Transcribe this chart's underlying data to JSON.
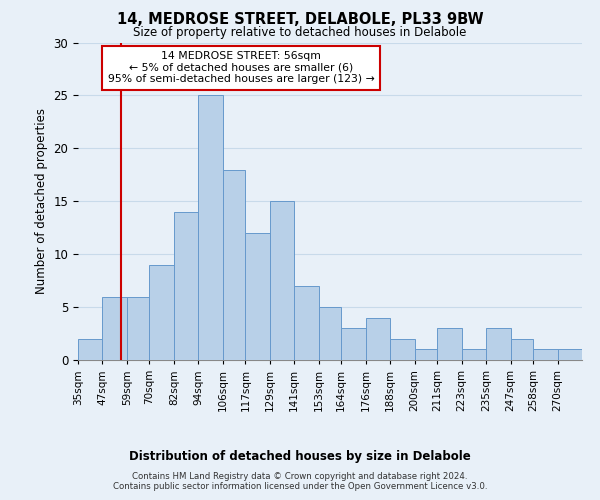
{
  "title": "14, MEDROSE STREET, DELABOLE, PL33 9BW",
  "subtitle": "Size of property relative to detached houses in Delabole",
  "xlabel": "Distribution of detached houses by size in Delabole",
  "ylabel": "Number of detached properties",
  "bin_labels": [
    "35sqm",
    "47sqm",
    "59sqm",
    "70sqm",
    "82sqm",
    "94sqm",
    "106sqm",
    "117sqm",
    "129sqm",
    "141sqm",
    "153sqm",
    "164sqm",
    "176sqm",
    "188sqm",
    "200sqm",
    "211sqm",
    "223sqm",
    "235sqm",
    "247sqm",
    "258sqm",
    "270sqm"
  ],
  "bin_edges": [
    35,
    47,
    59,
    70,
    82,
    94,
    106,
    117,
    129,
    141,
    153,
    164,
    176,
    188,
    200,
    211,
    223,
    235,
    247,
    258,
    270
  ],
  "bar_heights": [
    2,
    6,
    6,
    9,
    14,
    25,
    18,
    12,
    15,
    7,
    5,
    3,
    4,
    2,
    1,
    3,
    1,
    3,
    2,
    1,
    1
  ],
  "bar_color": "#b8d0e8",
  "bar_edge_color": "#6699cc",
  "redline_x": 56,
  "annotation_title": "14 MEDROSE STREET: 56sqm",
  "annotation_line1": "← 5% of detached houses are smaller (6)",
  "annotation_line2": "95% of semi-detached houses are larger (123) →",
  "annotation_box_color": "#ffffff",
  "annotation_box_edge": "#cc0000",
  "redline_color": "#cc0000",
  "ylim": [
    0,
    30
  ],
  "yticks": [
    0,
    5,
    10,
    15,
    20,
    25,
    30
  ],
  "grid_color": "#c8daea",
  "background_color": "#e8f0f8",
  "footer1": "Contains HM Land Registry data © Crown copyright and database right 2024.",
  "footer2": "Contains public sector information licensed under the Open Government Licence v3.0."
}
